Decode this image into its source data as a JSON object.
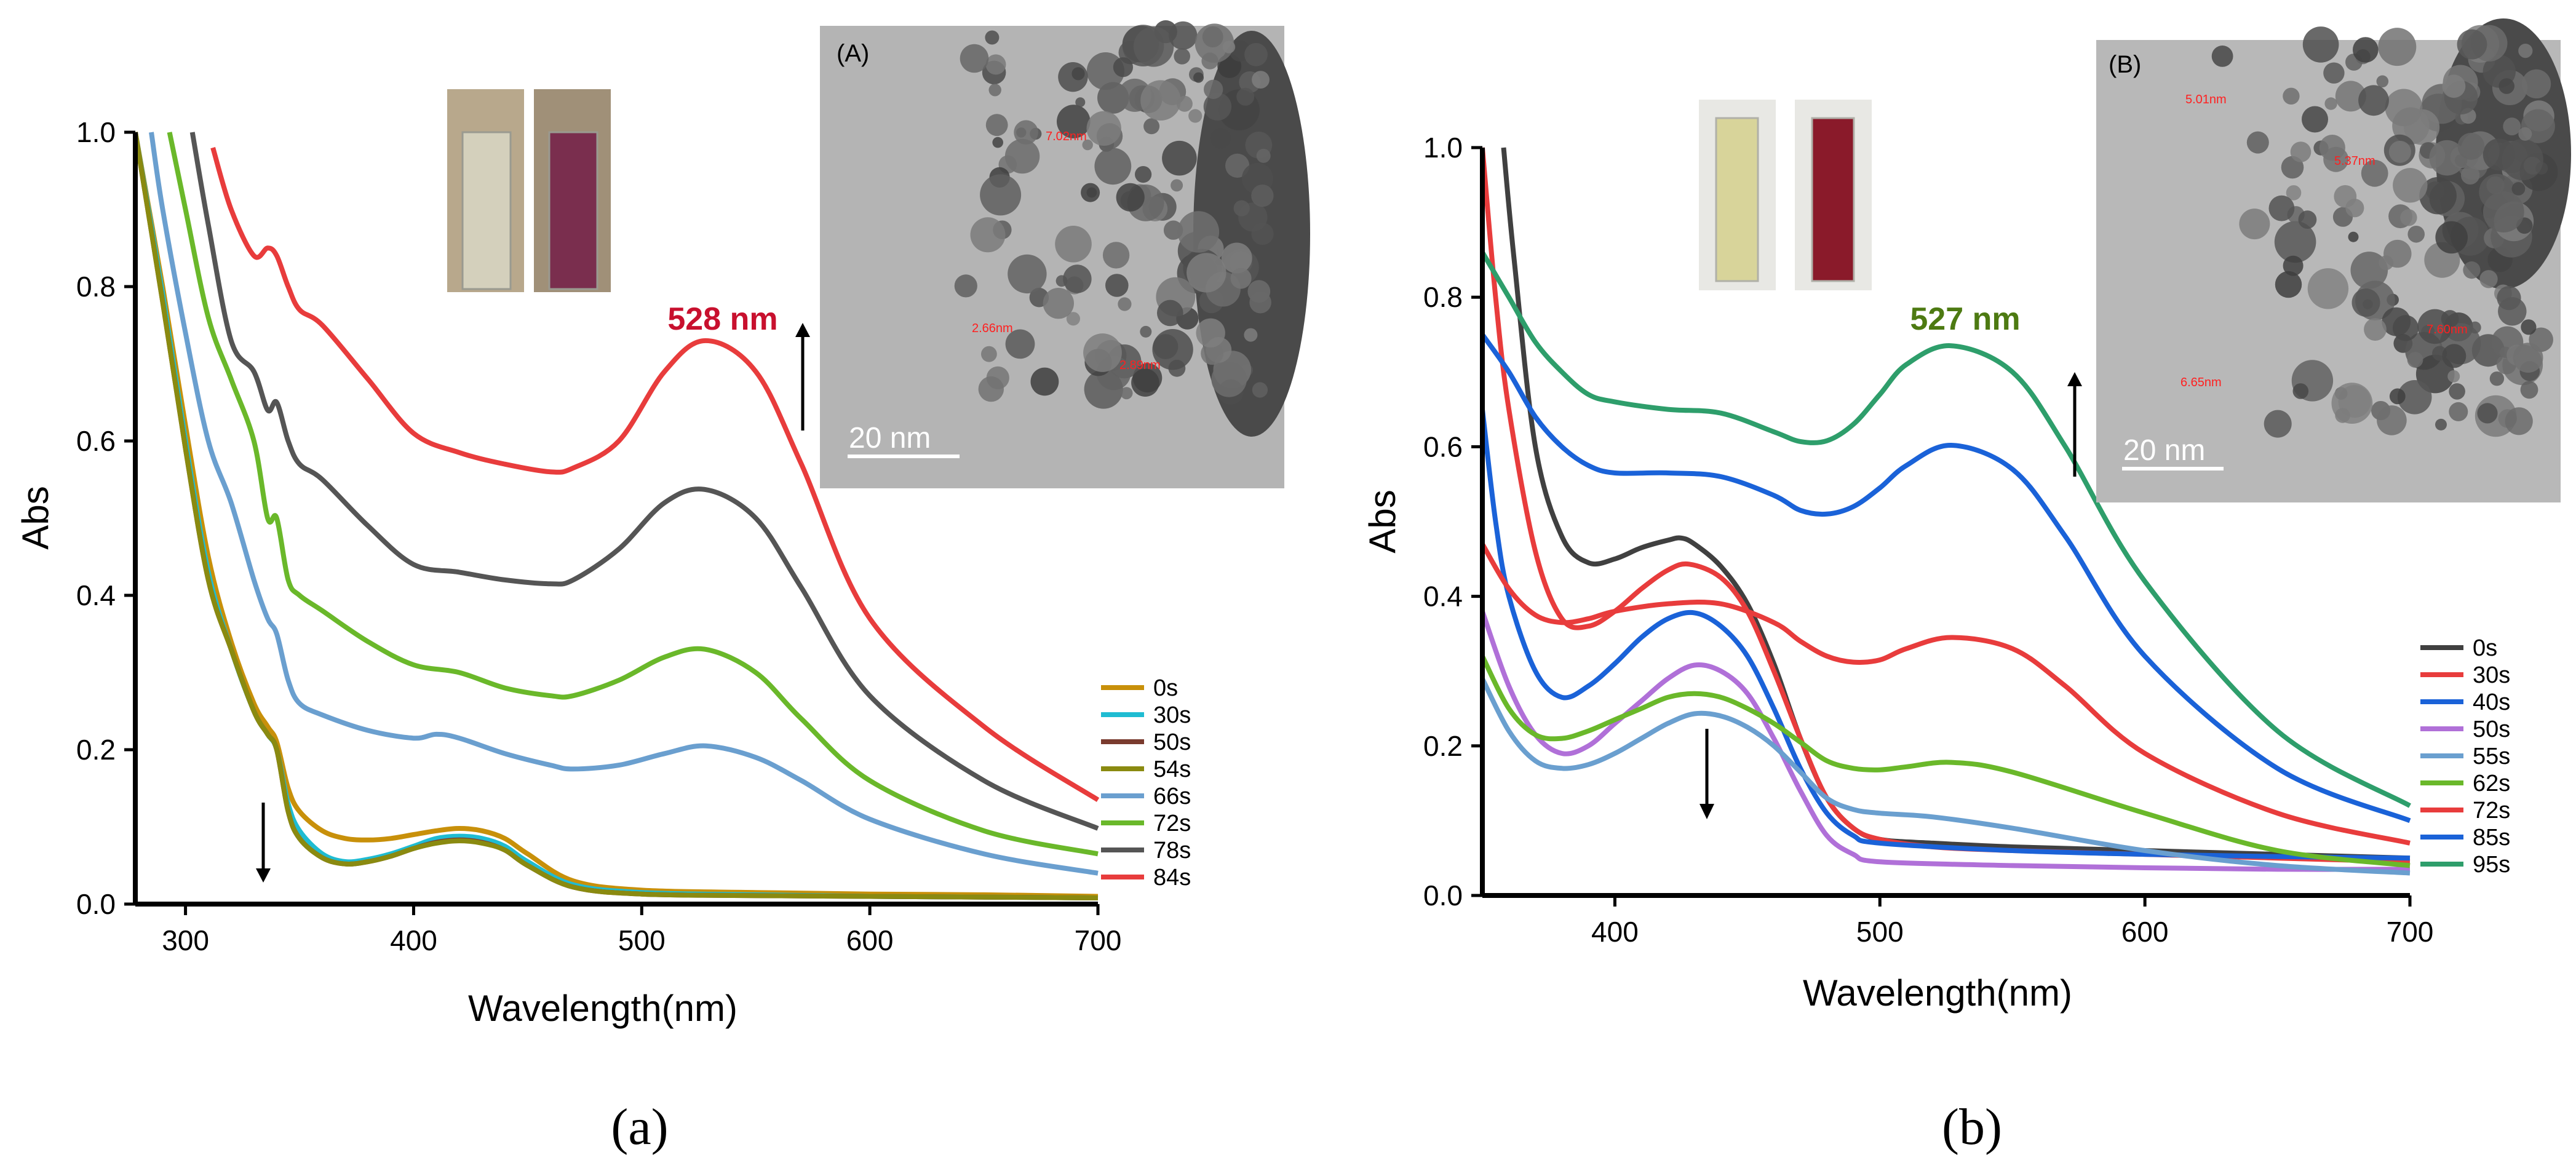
{
  "chart_data": [
    {
      "type": "line",
      "panel_label": "(a)",
      "xlabel": "Wavelength(nm)",
      "ylabel": "Abs",
      "xlim": [
        278,
        700
      ],
      "ylim": [
        0,
        1.0
      ],
      "xticks": [
        300,
        400,
        500,
        600,
        700
      ],
      "yticks": [
        0.0,
        0.2,
        0.4,
        0.6,
        0.8,
        1.0
      ],
      "peak_label": "528 nm",
      "peak_color": "#c8102e",
      "inset_tem_label": "(A)",
      "tem_scale": "20 nm",
      "tem_measurements": [
        "7.02nm",
        "2.66nm",
        "2.89nm"
      ],
      "series": [
        {
          "name": "0s",
          "color": "#c8900a",
          "x": [
            278,
            290,
            300,
            310,
            320,
            330,
            336,
            340,
            345,
            350,
            360,
            370,
            380,
            390,
            400,
            410,
            420,
            430,
            440,
            450,
            470,
            500,
            550,
            600,
            650,
            700
          ],
          "y": [
            1.0,
            0.8,
            0.62,
            0.45,
            0.34,
            0.26,
            0.23,
            0.21,
            0.15,
            0.12,
            0.095,
            0.085,
            0.083,
            0.085,
            0.09,
            0.095,
            0.098,
            0.095,
            0.085,
            0.065,
            0.03,
            0.018,
            0.015,
            0.013,
            0.012,
            0.01
          ]
        },
        {
          "name": "30s",
          "color": "#1fbcd2",
          "x": [
            278,
            290,
            300,
            310,
            320,
            330,
            336,
            340,
            345,
            350,
            360,
            370,
            380,
            390,
            400,
            410,
            420,
            430,
            440,
            450,
            470,
            500,
            550,
            600,
            650,
            700
          ],
          "y": [
            1.0,
            0.79,
            0.6,
            0.43,
            0.33,
            0.25,
            0.22,
            0.2,
            0.13,
            0.095,
            0.065,
            0.055,
            0.058,
            0.065,
            0.075,
            0.085,
            0.088,
            0.085,
            0.075,
            0.055,
            0.025,
            0.015,
            0.012,
            0.01,
            0.009,
            0.008
          ]
        },
        {
          "name": "50s",
          "color": "#7a3b2e",
          "x": [
            278,
            290,
            300,
            310,
            320,
            330,
            336,
            340,
            345,
            350,
            360,
            370,
            380,
            390,
            400,
            410,
            420,
            430,
            440,
            450,
            470,
            500,
            550,
            600,
            650,
            700
          ],
          "y": [
            1.0,
            0.78,
            0.59,
            0.42,
            0.33,
            0.25,
            0.22,
            0.2,
            0.12,
            0.085,
            0.06,
            0.052,
            0.055,
            0.062,
            0.072,
            0.08,
            0.083,
            0.08,
            0.07,
            0.05,
            0.022,
            0.013,
            0.011,
            0.01,
            0.009,
            0.008
          ]
        },
        {
          "name": "54s",
          "color": "#8a8a10",
          "x": [
            278,
            290,
            300,
            310,
            320,
            330,
            336,
            340,
            345,
            350,
            360,
            370,
            380,
            390,
            400,
            410,
            420,
            430,
            440,
            450,
            470,
            500,
            550,
            600,
            650,
            700
          ],
          "y": [
            1.0,
            0.78,
            0.59,
            0.42,
            0.33,
            0.25,
            0.22,
            0.2,
            0.12,
            0.085,
            0.06,
            0.052,
            0.055,
            0.062,
            0.072,
            0.079,
            0.082,
            0.079,
            0.07,
            0.05,
            0.022,
            0.013,
            0.011,
            0.01,
            0.009,
            0.008
          ]
        },
        {
          "name": "66s",
          "color": "#6a9fcf",
          "x": [
            285,
            290,
            300,
            310,
            320,
            330,
            336,
            340,
            345,
            350,
            360,
            380,
            400,
            410,
            420,
            440,
            460,
            470,
            490,
            510,
            528,
            550,
            570,
            600,
            650,
            700
          ],
          "y": [
            1.0,
            0.9,
            0.74,
            0.6,
            0.52,
            0.42,
            0.37,
            0.35,
            0.29,
            0.26,
            0.245,
            0.225,
            0.215,
            0.22,
            0.215,
            0.195,
            0.18,
            0.175,
            0.18,
            0.195,
            0.205,
            0.19,
            0.16,
            0.11,
            0.065,
            0.04
          ]
        },
        {
          "name": "72s",
          "color": "#6ab82a",
          "x": [
            293,
            300,
            310,
            320,
            330,
            336,
            340,
            345,
            350,
            360,
            380,
            400,
            420,
            440,
            460,
            470,
            490,
            510,
            528,
            550,
            570,
            600,
            650,
            700
          ],
          "y": [
            1.0,
            0.9,
            0.76,
            0.68,
            0.6,
            0.5,
            0.5,
            0.42,
            0.4,
            0.38,
            0.34,
            0.31,
            0.3,
            0.28,
            0.27,
            0.27,
            0.29,
            0.32,
            0.33,
            0.3,
            0.24,
            0.16,
            0.095,
            0.065
          ]
        },
        {
          "name": "78s",
          "color": "#555555",
          "x": [
            303,
            310,
            320,
            330,
            336,
            340,
            345,
            350,
            360,
            380,
            400,
            420,
            440,
            460,
            470,
            490,
            510,
            528,
            550,
            570,
            600,
            650,
            700
          ],
          "y": [
            1.0,
            0.88,
            0.73,
            0.69,
            0.64,
            0.65,
            0.6,
            0.57,
            0.55,
            0.49,
            0.44,
            0.43,
            0.42,
            0.415,
            0.42,
            0.46,
            0.52,
            0.537,
            0.5,
            0.41,
            0.27,
            0.16,
            0.098
          ]
        },
        {
          "name": "84s",
          "color": "#e83c3c",
          "x": [
            312,
            320,
            330,
            336,
            340,
            345,
            350,
            360,
            380,
            400,
            420,
            440,
            460,
            470,
            490,
            510,
            528,
            550,
            570,
            600,
            650,
            700
          ],
          "y": [
            0.98,
            0.9,
            0.84,
            0.85,
            0.84,
            0.8,
            0.77,
            0.75,
            0.68,
            0.61,
            0.585,
            0.57,
            0.56,
            0.565,
            0.6,
            0.69,
            0.73,
            0.69,
            0.57,
            0.37,
            0.23,
            0.135
          ]
        }
      ]
    },
    {
      "type": "line",
      "panel_label": "(b)",
      "xlabel": "Wavelength(nm)",
      "ylabel": "Abs",
      "xlim": [
        350,
        700
      ],
      "ylim": [
        0,
        1.0
      ],
      "xticks": [
        400,
        500,
        600,
        700
      ],
      "yticks": [
        0.0,
        0.2,
        0.4,
        0.6,
        0.8,
        1.0
      ],
      "peak_label": "527 nm",
      "peak_color": "#4d7a12",
      "inset_tem_label": "(B)",
      "tem_scale": "20 nm",
      "tem_measurements": [
        "5.01nm",
        "5.37nm",
        "7.60nm",
        "6.65nm"
      ],
      "series": [
        {
          "name": "0s",
          "color": "#404040",
          "x": [
            358,
            362,
            370,
            380,
            390,
            400,
            410,
            420,
            425,
            430,
            440,
            450,
            460,
            470,
            480,
            490,
            500,
            520,
            550,
            600,
            650,
            700
          ],
          "y": [
            1.0,
            0.85,
            0.6,
            0.48,
            0.445,
            0.45,
            0.465,
            0.475,
            0.478,
            0.47,
            0.44,
            0.39,
            0.31,
            0.21,
            0.13,
            0.09,
            0.075,
            0.07,
            0.065,
            0.06,
            0.055,
            0.05
          ]
        },
        {
          "name": "30s",
          "color": "#e83c3c",
          "x": [
            350,
            355,
            360,
            370,
            380,
            390,
            400,
            410,
            420,
            428,
            440,
            450,
            460,
            470,
            480,
            490,
            500,
            520,
            550,
            600,
            650,
            700
          ],
          "y": [
            1.0,
            0.8,
            0.65,
            0.46,
            0.37,
            0.36,
            0.38,
            0.41,
            0.435,
            0.443,
            0.425,
            0.38,
            0.3,
            0.21,
            0.13,
            0.09,
            0.075,
            0.065,
            0.06,
            0.055,
            0.05,
            0.045
          ]
        },
        {
          "name": "40s",
          "color": "#1a62d8",
          "x": [
            350,
            355,
            360,
            370,
            380,
            390,
            400,
            410,
            420,
            430,
            440,
            450,
            460,
            470,
            480,
            490,
            500,
            550,
            600,
            650,
            700
          ],
          "y": [
            0.65,
            0.5,
            0.4,
            0.3,
            0.265,
            0.28,
            0.31,
            0.345,
            0.37,
            0.378,
            0.36,
            0.32,
            0.25,
            0.17,
            0.11,
            0.08,
            0.07,
            0.06,
            0.055,
            0.052,
            0.05
          ]
        },
        {
          "name": "50s",
          "color": "#b070d8",
          "x": [
            350,
            360,
            370,
            380,
            390,
            400,
            410,
            420,
            430,
            440,
            450,
            460,
            470,
            480,
            490,
            500,
            550,
            600,
            650,
            700
          ],
          "y": [
            0.38,
            0.28,
            0.215,
            0.19,
            0.2,
            0.23,
            0.26,
            0.29,
            0.308,
            0.3,
            0.27,
            0.21,
            0.14,
            0.08,
            0.055,
            0.045,
            0.04,
            0.037,
            0.035,
            0.035
          ]
        },
        {
          "name": "55s",
          "color": "#6a9fcf",
          "x": [
            350,
            360,
            370,
            380,
            390,
            400,
            410,
            420,
            430,
            440,
            450,
            460,
            470,
            480,
            490,
            500,
            520,
            550,
            600,
            650,
            700
          ],
          "y": [
            0.29,
            0.22,
            0.18,
            0.17,
            0.175,
            0.19,
            0.21,
            0.23,
            0.243,
            0.24,
            0.225,
            0.2,
            0.165,
            0.13,
            0.115,
            0.11,
            0.105,
            0.09,
            0.06,
            0.04,
            0.03
          ]
        },
        {
          "name": "62s",
          "color": "#6ab82a",
          "x": [
            350,
            360,
            370,
            380,
            390,
            400,
            410,
            420,
            430,
            440,
            450,
            460,
            470,
            480,
            490,
            500,
            510,
            527,
            550,
            600,
            650,
            700
          ],
          "y": [
            0.32,
            0.25,
            0.215,
            0.21,
            0.22,
            0.235,
            0.25,
            0.265,
            0.27,
            0.265,
            0.25,
            0.23,
            0.205,
            0.18,
            0.17,
            0.168,
            0.172,
            0.178,
            0.165,
            0.11,
            0.06,
            0.04
          ]
        },
        {
          "name": "72s",
          "color": "#e83c3c",
          "x": [
            350,
            360,
            370,
            380,
            390,
            400,
            420,
            440,
            460,
            470,
            480,
            490,
            500,
            510,
            527,
            550,
            570,
            600,
            650,
            700
          ],
          "y": [
            0.47,
            0.41,
            0.375,
            0.365,
            0.37,
            0.38,
            0.39,
            0.39,
            0.365,
            0.34,
            0.32,
            0.312,
            0.315,
            0.33,
            0.345,
            0.33,
            0.28,
            0.19,
            0.11,
            0.07
          ]
        },
        {
          "name": "85s",
          "color": "#1a62d8",
          "x": [
            350,
            360,
            370,
            380,
            390,
            400,
            420,
            440,
            460,
            470,
            480,
            490,
            500,
            510,
            527,
            550,
            570,
            600,
            650,
            700
          ],
          "y": [
            0.75,
            0.7,
            0.64,
            0.6,
            0.575,
            0.565,
            0.565,
            0.56,
            0.535,
            0.515,
            0.51,
            0.52,
            0.545,
            0.575,
            0.602,
            0.57,
            0.48,
            0.32,
            0.17,
            0.1
          ]
        },
        {
          "name": "95s",
          "color": "#2e9e6b",
          "x": [
            350,
            360,
            370,
            380,
            390,
            400,
            420,
            440,
            460,
            470,
            480,
            490,
            500,
            510,
            527,
            550,
            570,
            600,
            650,
            700
          ],
          "y": [
            0.86,
            0.8,
            0.74,
            0.7,
            0.67,
            0.66,
            0.65,
            0.645,
            0.62,
            0.607,
            0.608,
            0.63,
            0.67,
            0.71,
            0.735,
            0.7,
            0.6,
            0.42,
            0.22,
            0.12
          ]
        }
      ]
    }
  ]
}
